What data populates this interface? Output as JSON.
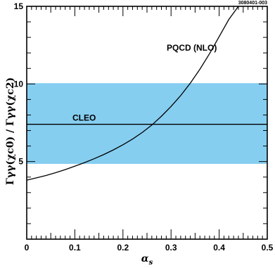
{
  "figure_id": "3080401-003",
  "colors": {
    "band": "#86cef0",
    "line": "#000000",
    "frame": "#000000"
  },
  "chart_data": {
    "type": "line",
    "xlabel": "α",
    "xlabel_sub": "s",
    "ylabel": "Γγγ(χc0) / Γγγ(χc2)",
    "xlim": [
      0,
      0.5
    ],
    "ylim": [
      0,
      15
    ],
    "x_ticks": [
      0,
      0.1,
      0.2,
      0.3,
      0.4,
      0.5
    ],
    "x_tick_labels": [
      "0",
      "0.1",
      "0.2",
      "0.3",
      "0.4",
      "0.5"
    ],
    "y_ticks": [
      5,
      10,
      15
    ],
    "y_tick_labels": [
      "5",
      "10",
      "15"
    ],
    "grid": false,
    "band": {
      "name": "CLEO",
      "central": 7.4,
      "low": 4.85,
      "high": 10.05
    },
    "series": [
      {
        "name": "PQCD (NLO)",
        "x": [
          0.0,
          0.02,
          0.04,
          0.06,
          0.08,
          0.1,
          0.12,
          0.14,
          0.16,
          0.18,
          0.2,
          0.22,
          0.24,
          0.26,
          0.28,
          0.3,
          0.32,
          0.34,
          0.36,
          0.38,
          0.4,
          0.42,
          0.44
        ],
        "y": [
          3.8,
          3.95,
          4.1,
          4.28,
          4.48,
          4.7,
          4.93,
          5.18,
          5.45,
          5.75,
          6.08,
          6.45,
          6.87,
          7.35,
          7.92,
          8.55,
          9.25,
          10.05,
          10.95,
          11.95,
          13.05,
          14.15,
          15.0
        ]
      }
    ]
  }
}
